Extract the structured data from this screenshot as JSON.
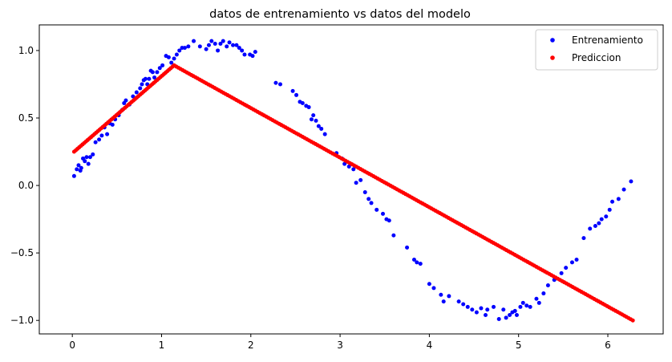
{
  "chart_data": {
    "type": "scatter",
    "title": "datos de entrenamiento vs datos del modelo",
    "xlabel": "",
    "ylabel": "",
    "xlim": [
      -0.37,
      6.62
    ],
    "ylim": [
      -1.1,
      1.19
    ],
    "x_ticks": [
      0,
      1,
      2,
      3,
      4,
      5,
      6
    ],
    "y_ticks": [
      -1.0,
      -0.5,
      0.0,
      0.5,
      1.0
    ],
    "x_tick_labels": [
      "0",
      "1",
      "2",
      "3",
      "4",
      "5",
      "6"
    ],
    "y_tick_labels": [
      "−1.0",
      "−0.5",
      "0.0",
      "0.5",
      "1.0"
    ],
    "grid": false,
    "legend_position": "top-right",
    "series": [
      {
        "name": "Entrenamiento",
        "color": "#0000ff",
        "marker": "dot",
        "points": [
          [
            0.02,
            0.07
          ],
          [
            0.05,
            0.12
          ],
          [
            0.07,
            0.15
          ],
          [
            0.09,
            0.11
          ],
          [
            0.1,
            0.13
          ],
          [
            0.12,
            0.2
          ],
          [
            0.14,
            0.18
          ],
          [
            0.16,
            0.21
          ],
          [
            0.18,
            0.16
          ],
          [
            0.2,
            0.21
          ],
          [
            0.23,
            0.23
          ],
          [
            0.26,
            0.32
          ],
          [
            0.3,
            0.34
          ],
          [
            0.33,
            0.37
          ],
          [
            0.36,
            0.43
          ],
          [
            0.39,
            0.38
          ],
          [
            0.42,
            0.46
          ],
          [
            0.45,
            0.45
          ],
          [
            0.48,
            0.49
          ],
          [
            0.52,
            0.52
          ],
          [
            0.56,
            0.56
          ],
          [
            0.58,
            0.61
          ],
          [
            0.6,
            0.63
          ],
          [
            0.64,
            0.6
          ],
          [
            0.68,
            0.66
          ],
          [
            0.72,
            0.69
          ],
          [
            0.76,
            0.72
          ],
          [
            0.78,
            0.75
          ],
          [
            0.8,
            0.78
          ],
          [
            0.82,
            0.79
          ],
          [
            0.84,
            0.75
          ],
          [
            0.86,
            0.79
          ],
          [
            0.88,
            0.85
          ],
          [
            0.9,
            0.84
          ],
          [
            0.92,
            0.8
          ],
          [
            0.95,
            0.84
          ],
          [
            0.98,
            0.87
          ],
          [
            1.01,
            0.89
          ],
          [
            1.05,
            0.96
          ],
          [
            1.08,
            0.95
          ],
          [
            1.11,
            0.91
          ],
          [
            1.14,
            0.94
          ],
          [
            1.17,
            0.97
          ],
          [
            1.2,
            1.0
          ],
          [
            1.23,
            1.02
          ],
          [
            1.26,
            1.02
          ],
          [
            1.3,
            1.03
          ],
          [
            1.36,
            1.07
          ],
          [
            1.43,
            1.03
          ],
          [
            1.5,
            1.01
          ],
          [
            1.53,
            1.04
          ],
          [
            1.56,
            1.07
          ],
          [
            1.6,
            1.05
          ],
          [
            1.63,
            1.0
          ],
          [
            1.66,
            1.05
          ],
          [
            1.69,
            1.07
          ],
          [
            1.73,
            1.03
          ],
          [
            1.76,
            1.06
          ],
          [
            1.8,
            1.04
          ],
          [
            1.84,
            1.04
          ],
          [
            1.87,
            1.02
          ],
          [
            1.9,
            1.0
          ],
          [
            1.93,
            0.97
          ],
          [
            1.99,
            0.97
          ],
          [
            2.02,
            0.96
          ],
          [
            2.05,
            0.99
          ],
          [
            2.28,
            0.76
          ],
          [
            2.33,
            0.75
          ],
          [
            2.47,
            0.7
          ],
          [
            2.51,
            0.67
          ],
          [
            2.55,
            0.62
          ],
          [
            2.58,
            0.61
          ],
          [
            2.62,
            0.59
          ],
          [
            2.65,
            0.58
          ],
          [
            2.68,
            0.49
          ],
          [
            2.7,
            0.52
          ],
          [
            2.73,
            0.48
          ],
          [
            2.76,
            0.44
          ],
          [
            2.79,
            0.42
          ],
          [
            2.83,
            0.38
          ],
          [
            2.96,
            0.24
          ],
          [
            3.02,
            0.2
          ],
          [
            3.05,
            0.16
          ],
          [
            3.1,
            0.14
          ],
          [
            3.15,
            0.12
          ],
          [
            3.18,
            0.02
          ],
          [
            3.23,
            0.04
          ],
          [
            3.28,
            -0.05
          ],
          [
            3.32,
            -0.1
          ],
          [
            3.35,
            -0.13
          ],
          [
            3.41,
            -0.18
          ],
          [
            3.48,
            -0.21
          ],
          [
            3.52,
            -0.25
          ],
          [
            3.55,
            -0.26
          ],
          [
            3.6,
            -0.37
          ],
          [
            3.75,
            -0.46
          ],
          [
            3.83,
            -0.55
          ],
          [
            3.86,
            -0.57
          ],
          [
            3.9,
            -0.58
          ],
          [
            4.0,
            -0.73
          ],
          [
            4.05,
            -0.76
          ],
          [
            4.13,
            -0.81
          ],
          [
            4.16,
            -0.86
          ],
          [
            4.22,
            -0.82
          ],
          [
            4.33,
            -0.86
          ],
          [
            4.38,
            -0.88
          ],
          [
            4.43,
            -0.9
          ],
          [
            4.48,
            -0.92
          ],
          [
            4.53,
            -0.94
          ],
          [
            4.58,
            -0.91
          ],
          [
            4.63,
            -0.96
          ],
          [
            4.65,
            -0.92
          ],
          [
            4.72,
            -0.9
          ],
          [
            4.78,
            -0.99
          ],
          [
            4.83,
            -0.92
          ],
          [
            4.86,
            -0.98
          ],
          [
            4.9,
            -0.96
          ],
          [
            4.93,
            -0.94
          ],
          [
            4.96,
            -0.93
          ],
          [
            4.98,
            -0.96
          ],
          [
            5.02,
            -0.9
          ],
          [
            5.05,
            -0.87
          ],
          [
            5.09,
            -0.89
          ],
          [
            5.13,
            -0.9
          ],
          [
            5.2,
            -0.84
          ],
          [
            5.23,
            -0.87
          ],
          [
            5.28,
            -0.8
          ],
          [
            5.33,
            -0.74
          ],
          [
            5.4,
            -0.7
          ],
          [
            5.48,
            -0.65
          ],
          [
            5.53,
            -0.61
          ],
          [
            5.6,
            -0.57
          ],
          [
            5.65,
            -0.55
          ],
          [
            5.73,
            -0.39
          ],
          [
            5.8,
            -0.32
          ],
          [
            5.86,
            -0.3
          ],
          [
            5.9,
            -0.28
          ],
          [
            5.93,
            -0.25
          ],
          [
            5.98,
            -0.23
          ],
          [
            6.02,
            -0.18
          ],
          [
            6.05,
            -0.12
          ],
          [
            6.12,
            -0.1
          ],
          [
            6.18,
            -0.03
          ],
          [
            6.26,
            0.03
          ]
        ]
      },
      {
        "name": "Prediccion",
        "color": "#ff0000",
        "marker": "dot",
        "line_segments": [
          {
            "x0": 0.02,
            "y0": 0.25,
            "x1": 1.14,
            "y1": 0.89,
            "n": 60
          },
          {
            "x0": 1.14,
            "y0": 0.89,
            "x1": 6.28,
            "y1": -1.0,
            "n": 215
          }
        ]
      }
    ]
  }
}
